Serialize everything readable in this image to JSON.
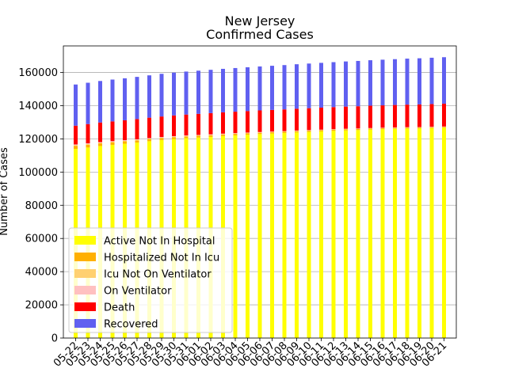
{
  "chart_data": {
    "type": "bar",
    "stacked": true,
    "title": "New Jersey",
    "subtitle": "Confirmed Cases",
    "ylabel": "Number of Cases",
    "xlabel": "",
    "ylim": [
      0,
      176000
    ],
    "yticks": [
      0,
      20000,
      40000,
      60000,
      80000,
      100000,
      120000,
      140000,
      160000
    ],
    "ytick_labels": [
      "0",
      "20000",
      "40000",
      "60000",
      "80000",
      "100000",
      "120000",
      "140000",
      "160000"
    ],
    "grid": "horizontal",
    "legend_position": "bottom-left",
    "categories": [
      "05-22",
      "05-23",
      "05-24",
      "05-25",
      "05-26",
      "05-27",
      "05-28",
      "05-29",
      "05-30",
      "05-31",
      "06-01",
      "06-02",
      "06-03",
      "06-04",
      "06-05",
      "06-06",
      "06-07",
      "06-08",
      "06-09",
      "06-10",
      "06-11",
      "06-12",
      "06-13",
      "06-14",
      "06-15",
      "06-16",
      "06-17",
      "06-18",
      "06-19",
      "06-20",
      "06-21"
    ],
    "series": [
      {
        "name": "Active Not In Hospital",
        "color": "#ffff00",
        "values": [
          114000,
          114800,
          115700,
          116400,
          117100,
          117800,
          118600,
          119300,
          119900,
          120400,
          120800,
          121200,
          121700,
          122100,
          122500,
          122900,
          123200,
          123500,
          123900,
          124200,
          124500,
          124800,
          125100,
          125300,
          125600,
          125800,
          126000,
          126200,
          126300,
          126500,
          126700
        ]
      },
      {
        "name": "Hospitalized Not In Icu",
        "color": "#ffb000",
        "values": [
          1800,
          1700,
          1600,
          1500,
          1400,
          1300,
          1250,
          1200,
          1150,
          1100,
          1050,
          1000,
          950,
          900,
          850,
          800,
          780,
          760,
          740,
          720,
          700,
          680,
          660,
          640,
          620,
          600,
          580,
          560,
          540,
          520,
          500
        ]
      },
      {
        "name": "Icu Not On Ventilator",
        "color": "#ffd070",
        "values": [
          450,
          430,
          410,
          390,
          370,
          350,
          330,
          310,
          300,
          290,
          280,
          270,
          260,
          250,
          240,
          230,
          220,
          210,
          200,
          195,
          190,
          185,
          180,
          175,
          170,
          165,
          160,
          155,
          150,
          145,
          140
        ]
      },
      {
        "name": "On Ventilator",
        "color": "#ffc0c0",
        "values": [
          400,
          380,
          360,
          340,
          320,
          300,
          290,
          280,
          270,
          260,
          250,
          240,
          230,
          220,
          210,
          200,
          190,
          180,
          170,
          165,
          160,
          155,
          150,
          145,
          140,
          135,
          130,
          125,
          120,
          115,
          110
        ]
      },
      {
        "name": "Death",
        "color": "#ff0000",
        "values": [
          11300,
          11600,
          11800,
          11900,
          12000,
          12200,
          12300,
          12400,
          12500,
          12600,
          12700,
          12800,
          12850,
          12900,
          12950,
          13000,
          13050,
          13100,
          13150,
          13200,
          13250,
          13300,
          13350,
          13400,
          13450,
          13500,
          13550,
          13600,
          13650,
          13700,
          13750
        ]
      },
      {
        "name": "Recovered",
        "color": "#6060f0",
        "values": [
          24800,
          24900,
          25000,
          25200,
          25300,
          25400,
          25500,
          25700,
          25800,
          25900,
          26000,
          26100,
          26200,
          26300,
          26400,
          26500,
          26600,
          26700,
          26800,
          26900,
          27000,
          27100,
          27200,
          27300,
          27400,
          27500,
          27600,
          27700,
          27800,
          27900,
          28000
        ]
      }
    ]
  }
}
